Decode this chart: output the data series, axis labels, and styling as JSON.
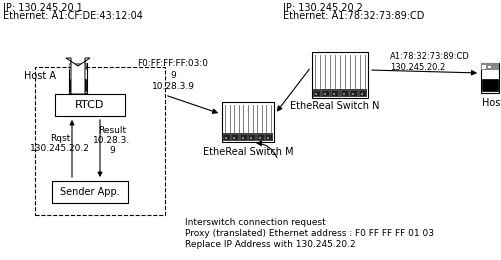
{
  "bg_color": "#ffffff",
  "top_left_text": [
    "IP: 130.245.20.1",
    "Ethernet: A1:CF:DE:43:12:04"
  ],
  "top_right_text": [
    "IP: 130.245.20.2",
    "Ethernet: A1:78:32:73:89:CD"
  ],
  "host_a_label": "Host A",
  "host_b_label": "Host B",
  "switch_m_label": "EtheReal Switch M",
  "switch_n_label": "EtheReal Switch N",
  "rtcd_label": "RTCD",
  "sender_label": "Sender App.",
  "rqst_text": "Rqst\n130.245.20.2",
  "result_text": "Result\n10.28.3.\n9",
  "arrow_label_1": "F0:FF:FF:FF:03:0\n9\n10.28.3.9",
  "arrow_label_2": "A1:78:32:73:89:CD\n130.245.20.2",
  "bottom_text": [
    "Interswitch connection request",
    "Proxy (translated) Ethernet address : F0 FF FF FF 01 03",
    "Replace IP Address with 130.245.20.2"
  ],
  "font_size": 7,
  "small_font": 6.5
}
